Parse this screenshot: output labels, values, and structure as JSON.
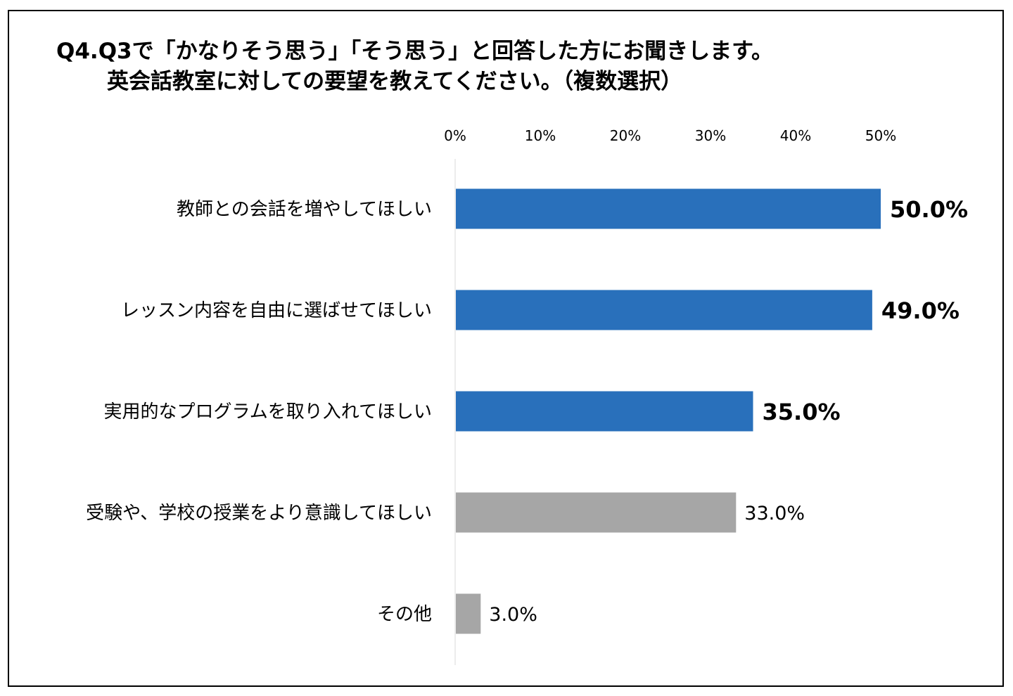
{
  "title_lines": [
    "Q4.Q3で「かなりそう思う」「そう思う」と回答した方にお聞きします。",
    "英会話教室に対しての要望を教えてください。（複数選択）"
  ],
  "chart_data": {
    "type": "bar",
    "orientation": "horizontal",
    "categories": [
      "教師との会話を増やしてほしい",
      "レッスン内容を自由に選ばせてほしい",
      "実用的なプログラムを取り入れてほしい",
      "受験や、学校の授業をより意識してほしい",
      "その他"
    ],
    "values": [
      50.0,
      49.0,
      35.0,
      33.0,
      3.0
    ],
    "value_labels": [
      "50.0%",
      "49.0%",
      "35.0%",
      "33.0%",
      "3.0%"
    ],
    "highlight": [
      true,
      true,
      true,
      false,
      false
    ],
    "colors": {
      "highlight": "#2970BB",
      "normal": "#A6A6A6"
    },
    "xlim": [
      0,
      50
    ],
    "xticks": [
      0,
      10,
      20,
      30,
      40,
      50
    ],
    "xtick_labels": [
      "0%",
      "10%",
      "20%",
      "30%",
      "40%",
      "50%"
    ],
    "axis_position": "top",
    "grid": false,
    "legend": "none",
    "xlabel": "",
    "ylabel": ""
  }
}
